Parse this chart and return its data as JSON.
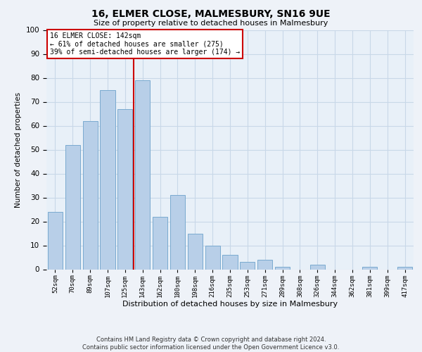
{
  "title": "16, ELMER CLOSE, MALMESBURY, SN16 9UE",
  "subtitle": "Size of property relative to detached houses in Malmesbury",
  "xlabel": "Distribution of detached houses by size in Malmesbury",
  "ylabel": "Number of detached properties",
  "categories": [
    "52sqm",
    "70sqm",
    "89sqm",
    "107sqm",
    "125sqm",
    "143sqm",
    "162sqm",
    "180sqm",
    "198sqm",
    "216sqm",
    "235sqm",
    "253sqm",
    "271sqm",
    "289sqm",
    "308sqm",
    "326sqm",
    "344sqm",
    "362sqm",
    "381sqm",
    "399sqm",
    "417sqm"
  ],
  "values": [
    24,
    52,
    62,
    75,
    67,
    79,
    22,
    31,
    15,
    10,
    6,
    3,
    4,
    1,
    0,
    2,
    0,
    0,
    1,
    0,
    1
  ],
  "bar_color": "#b8cfe8",
  "bar_edge_color": "#7aaad0",
  "vline_color": "#cc0000",
  "annotation_text": "16 ELMER CLOSE: 142sqm\n← 61% of detached houses are smaller (275)\n39% of semi-detached houses are larger (174) →",
  "annotation_box_color": "#cc0000",
  "ylim": [
    0,
    100
  ],
  "yticks": [
    0,
    10,
    20,
    30,
    40,
    50,
    60,
    70,
    80,
    90,
    100
  ],
  "grid_color": "#c8d8e8",
  "bg_color": "#e8f0f8",
  "fig_bg_color": "#eef2f8",
  "footer_line1": "Contains HM Land Registry data © Crown copyright and database right 2024.",
  "footer_line2": "Contains public sector information licensed under the Open Government Licence v3.0."
}
